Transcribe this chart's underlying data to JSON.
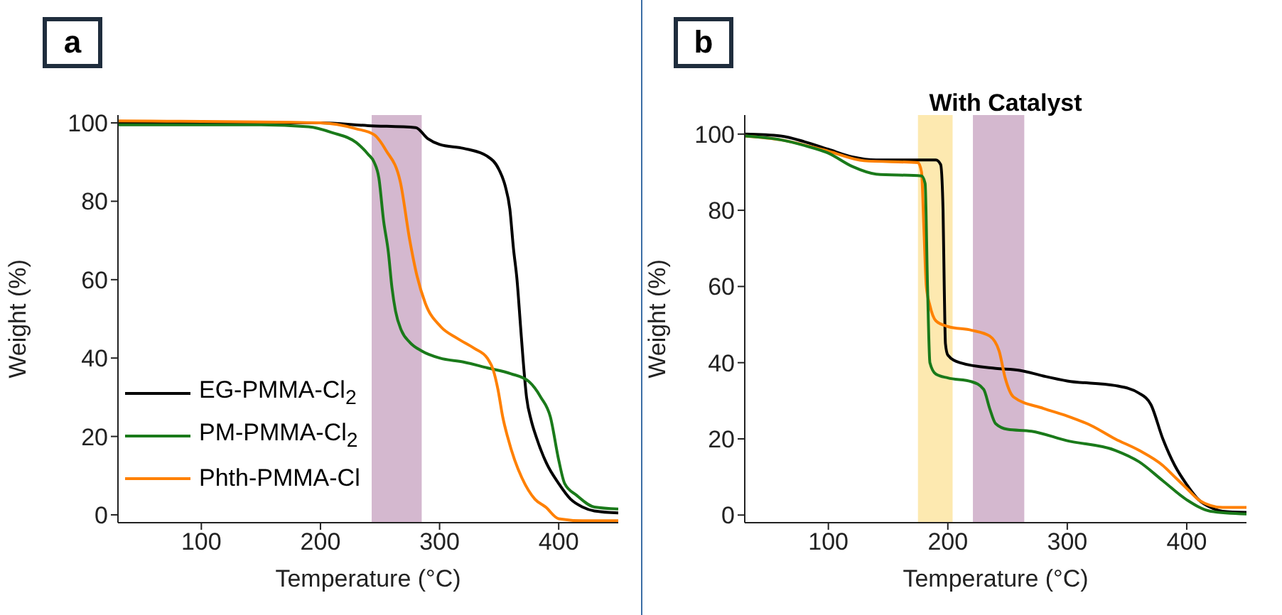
{
  "chart_data": [
    {
      "type": "line",
      "annotations": [
        "a"
      ],
      "xlabel": "Temperature (°C)",
      "ylabel": "Weight (%)",
      "xlim": [
        30,
        450
      ],
      "ylim": [
        -2,
        102
      ],
      "xticks": [
        100,
        200,
        300,
        400
      ],
      "yticks": [
        0,
        20,
        40,
        60,
        80,
        100
      ],
      "legend": "bottom left",
      "bands": [
        {
          "axis": "x",
          "from": 243,
          "to": 285,
          "color": "#d4b8cf"
        }
      ],
      "series": [
        {
          "name": "EG-PMMA-Cl$_{2}$",
          "color": "#000000",
          "x": [
            30,
            100,
            200,
            240,
            280,
            290,
            300,
            320,
            340,
            350,
            355,
            359,
            362,
            365,
            368,
            370,
            373,
            377,
            381,
            390,
            400,
            410,
            420,
            430,
            450
          ],
          "values": [
            100,
            100,
            100,
            99.3,
            98.8,
            96,
            94.5,
            93.5,
            91.5,
            88,
            84,
            78,
            68,
            60,
            48,
            40,
            30,
            24,
            20,
            13,
            8,
            4,
            2,
            1,
            0.5
          ]
        },
        {
          "name": "PM-PMMA-Cl$_{2}$",
          "color": "#1a7a1a",
          "x": [
            30,
            150,
            190,
            210,
            230,
            240,
            245,
            249,
            253,
            257,
            260,
            263,
            268,
            275,
            285,
            300,
            320,
            340,
            360,
            375,
            385,
            393,
            400,
            405,
            415,
            430,
            450
          ],
          "values": [
            99.5,
            99.5,
            99,
            97.5,
            95,
            92,
            90,
            86,
            75,
            67,
            58,
            52,
            47,
            44,
            41.8,
            40,
            39,
            37.5,
            36,
            34,
            30,
            25,
            14,
            8,
            5,
            2,
            1.5
          ]
        },
        {
          "name": "Phth-PMMA-Cl",
          "color": "#ff8000",
          "x": [
            30,
            200,
            230,
            245,
            255,
            267,
            275,
            281,
            288,
            301,
            315,
            329,
            340,
            345,
            349,
            353,
            357,
            363,
            369,
            380,
            389,
            400,
            420,
            450
          ],
          "values": [
            100.5,
            100,
            98.5,
            97,
            93,
            85,
            70,
            61,
            54,
            48,
            45,
            42.5,
            40,
            37,
            32,
            25,
            20,
            14,
            9.5,
            4,
            2,
            -1,
            -1.5,
            -1.5
          ]
        }
      ]
    },
    {
      "type": "line",
      "title": "With Catalyst",
      "annotations": [
        "b"
      ],
      "xlabel": "Temperature (°C)",
      "ylabel": "Weight (%)",
      "xlim": [
        30,
        450
      ],
      "ylim": [
        -2,
        105
      ],
      "xticks": [
        100,
        200,
        300,
        400
      ],
      "yticks": [
        0,
        20,
        40,
        60,
        80,
        100
      ],
      "legend": false,
      "bands": [
        {
          "axis": "x",
          "from": 175,
          "to": 204,
          "color": "#fde9b0"
        },
        {
          "axis": "x",
          "from": 221,
          "to": 264,
          "color": "#d4b8cf"
        }
      ],
      "series": [
        {
          "color": "#000000",
          "x": [
            30,
            60,
            80,
            100,
            120,
            140,
            190,
            194,
            196,
            197,
            198,
            200,
            210,
            240,
            260,
            280,
            300,
            340,
            360,
            370,
            380,
            390,
            400,
            410,
            420,
            430,
            450
          ],
          "values": [
            100,
            99.5,
            98,
            96,
            94,
            93.2,
            93.2,
            92,
            80,
            60,
            45,
            42,
            40,
            38.5,
            38,
            36.5,
            35.2,
            34,
            32,
            29,
            20,
            13,
            8,
            4,
            2,
            1,
            0.7
          ]
        },
        {
          "color": "#ff8000",
          "x": [
            30,
            60,
            100,
            130,
            175,
            178,
            180,
            182,
            185,
            190,
            200,
            220,
            235,
            243,
            248,
            255,
            280,
            300,
            320,
            340,
            360,
            380,
            390,
            400,
            410,
            420,
            430,
            450
          ],
          "values": [
            99.5,
            98.5,
            95.5,
            93,
            92.5,
            90,
            75,
            60,
            55,
            51,
            49.5,
            48.5,
            47,
            43,
            36,
            31,
            28,
            26,
            23.5,
            20,
            17,
            13,
            10,
            7,
            4,
            2.5,
            2,
            2
          ]
        },
        {
          "color": "#1a7a1a",
          "x": [
            30,
            60,
            80,
            100,
            120,
            140,
            178,
            181,
            183,
            185,
            190,
            200,
            220,
            230,
            235,
            240,
            250,
            270,
            300,
            340,
            360,
            380,
            400,
            420,
            450
          ],
          "values": [
            99.5,
            98.5,
            97,
            95,
            91.5,
            89.5,
            89,
            87,
            60,
            40,
            37,
            36,
            35,
            33,
            28,
            24,
            22.5,
            22,
            19.5,
            17,
            14,
            9,
            4,
            1,
            0.3
          ]
        }
      ]
    }
  ]
}
